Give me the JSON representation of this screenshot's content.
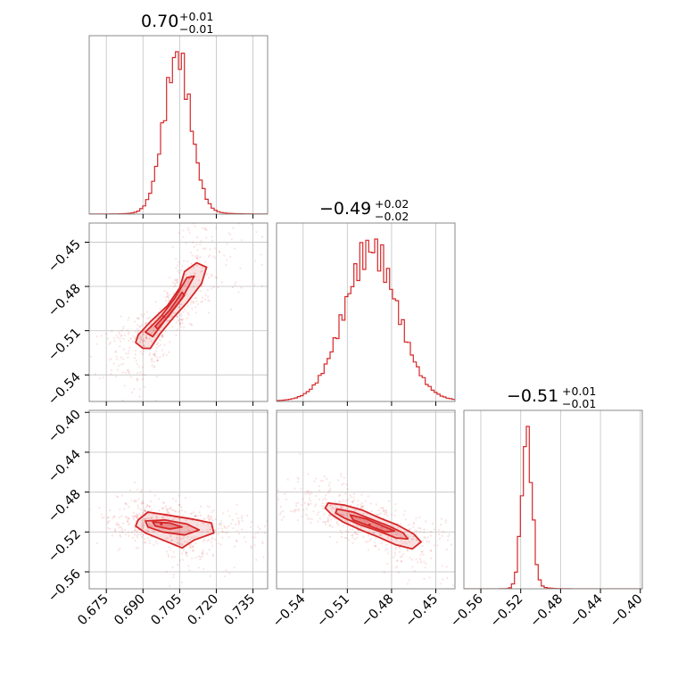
{
  "colors": {
    "accent": "#d62728",
    "frame": "#888888",
    "grid": "#c8c8c8"
  },
  "titles": [
    {
      "base": "0.70",
      "plus": "+0.01",
      "minus": "−0.01"
    },
    {
      "base": "−0.49",
      "plus": "+0.02",
      "minus": "−0.02"
    },
    {
      "base": "−0.51",
      "plus": "+0.01",
      "minus": "−0.01"
    }
  ],
  "chart_data": {
    "type": "corner",
    "grid": true,
    "params": [
      {
        "range": [
          0.668,
          0.741
        ],
        "ticks": [
          0.675,
          0.69,
          0.705,
          0.72,
          0.735
        ],
        "tick_labels": [
          "0.675",
          "0.690",
          "0.705",
          "0.720",
          "0.735"
        ],
        "tick_rotation": 45
      },
      {
        "range": [
          -0.558,
          -0.437
        ],
        "ticks": [
          -0.54,
          -0.51,
          -0.48,
          -0.45
        ],
        "tick_labels": [
          "−0.54",
          "−0.51",
          "−0.48",
          "−0.45"
        ],
        "tick_rotation": 45
      },
      {
        "range": [
          -0.577,
          -0.398
        ],
        "ticks": [
          -0.56,
          -0.52,
          -0.48,
          -0.44,
          -0.4
        ],
        "tick_labels": [
          "−0.56",
          "−0.52",
          "−0.48",
          "−0.44",
          "−0.40"
        ],
        "tick_rotation": 45
      }
    ],
    "histograms": [
      {
        "param": 0,
        "center": 0.704,
        "sigma": 0.0055,
        "skew": 0.2
      },
      {
        "param": 1,
        "center": -0.494,
        "sigma": 0.018,
        "skew": 0.15
      },
      {
        "param": 2,
        "center": -0.514,
        "sigma": 0.0052,
        "skew": 0.8
      }
    ],
    "pairs": [
      {
        "x_param": 0,
        "y_param": 1,
        "center": [
          0.6985,
          -0.5005
        ],
        "contours": [
          [
            [
              0.688,
              -0.513
            ],
            [
              0.693,
              -0.504
            ],
            [
              0.7,
              -0.493
            ],
            [
              0.705,
              -0.481
            ],
            [
              0.707,
              -0.47
            ],
            [
              0.712,
              -0.464
            ],
            [
              0.716,
              -0.467
            ],
            [
              0.714,
              -0.478
            ],
            [
              0.708,
              -0.491
            ],
            [
              0.702,
              -0.502
            ],
            [
              0.697,
              -0.512
            ],
            [
              0.693,
              -0.522
            ],
            [
              0.69,
              -0.522
            ],
            [
              0.687,
              -0.518
            ]
          ],
          [
            [
              0.691,
              -0.511
            ],
            [
              0.697,
              -0.501
            ],
            [
              0.703,
              -0.488
            ],
            [
              0.708,
              -0.474
            ],
            [
              0.711,
              -0.473
            ],
            [
              0.706,
              -0.488
            ],
            [
              0.699,
              -0.503
            ],
            [
              0.694,
              -0.514
            ]
          ],
          [
            [
              0.695,
              -0.507
            ],
            [
              0.701,
              -0.496
            ],
            [
              0.706,
              -0.484
            ],
            [
              0.707,
              -0.486
            ],
            [
              0.701,
              -0.499
            ],
            [
              0.696,
              -0.509
            ]
          ]
        ]
      },
      {
        "x_param": 0,
        "y_param": 2,
        "center": [
          0.6975,
          -0.512
        ],
        "contours": [
          [
            [
              0.688,
              -0.508
            ],
            [
              0.692,
              -0.5
            ],
            [
              0.7,
              -0.503
            ],
            [
              0.71,
              -0.507
            ],
            [
              0.718,
              -0.511
            ],
            [
              0.719,
              -0.521
            ],
            [
              0.711,
              -0.528
            ],
            [
              0.706,
              -0.536
            ],
            [
              0.701,
              -0.531
            ],
            [
              0.691,
              -0.521
            ],
            [
              0.687,
              -0.514
            ]
          ],
          [
            [
              0.691,
              -0.509
            ],
            [
              0.699,
              -0.508
            ],
            [
              0.708,
              -0.512
            ],
            [
              0.713,
              -0.518
            ],
            [
              0.707,
              -0.523
            ],
            [
              0.698,
              -0.52
            ],
            [
              0.692,
              -0.515
            ]
          ],
          [
            [
              0.694,
              -0.51
            ],
            [
              0.701,
              -0.511
            ],
            [
              0.706,
              -0.515
            ],
            [
              0.701,
              -0.517
            ],
            [
              0.695,
              -0.514
            ]
          ]
        ]
      },
      {
        "x_param": 1,
        "y_param": 2,
        "center": [
          -0.495,
          -0.513
        ],
        "contours": [
          [
            [
              -0.523,
              -0.491
            ],
            [
              -0.512,
              -0.493
            ],
            [
              -0.5,
              -0.498
            ],
            [
              -0.488,
              -0.506
            ],
            [
              -0.476,
              -0.513
            ],
            [
              -0.465,
              -0.522
            ],
            [
              -0.46,
              -0.53
            ],
            [
              -0.466,
              -0.537
            ],
            [
              -0.477,
              -0.533
            ],
            [
              -0.489,
              -0.525
            ],
            [
              -0.501,
              -0.518
            ],
            [
              -0.513,
              -0.51
            ],
            [
              -0.521,
              -0.502
            ],
            [
              -0.525,
              -0.496
            ]
          ],
          [
            [
              -0.517,
              -0.497
            ],
            [
              -0.506,
              -0.5
            ],
            [
              -0.494,
              -0.507
            ],
            [
              -0.482,
              -0.514
            ],
            [
              -0.472,
              -0.521
            ],
            [
              -0.469,
              -0.527
            ],
            [
              -0.477,
              -0.526
            ],
            [
              -0.489,
              -0.519
            ],
            [
              -0.501,
              -0.513
            ],
            [
              -0.512,
              -0.506
            ],
            [
              -0.518,
              -0.501
            ]
          ],
          [
            [
              -0.508,
              -0.503
            ],
            [
              -0.497,
              -0.507
            ],
            [
              -0.486,
              -0.514
            ],
            [
              -0.478,
              -0.519
            ],
            [
              -0.484,
              -0.52
            ],
            [
              -0.495,
              -0.514
            ],
            [
              -0.506,
              -0.508
            ]
          ]
        ]
      }
    ]
  }
}
